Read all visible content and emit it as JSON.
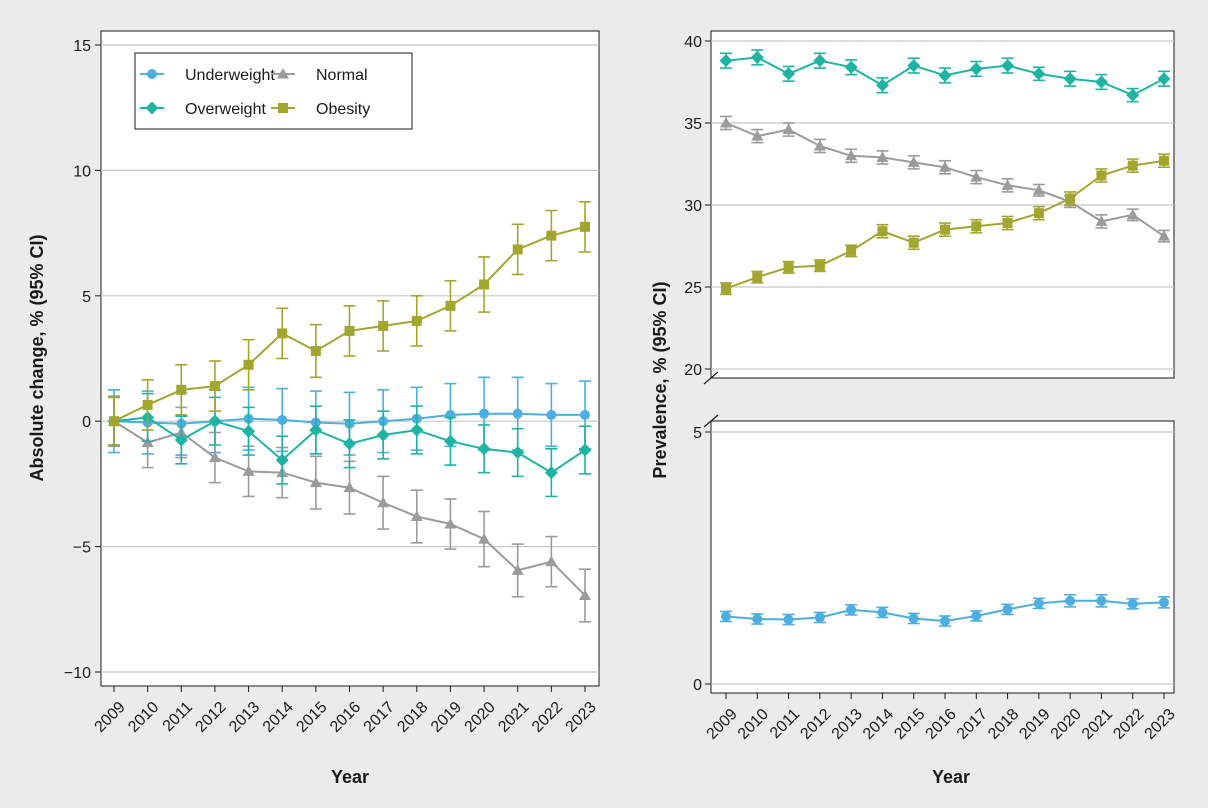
{
  "chart_data": [
    {
      "type": "line",
      "panel": "absolute-change",
      "xlabel": "Year",
      "ylabel": "Absolute change, % (95% CI)",
      "x": [
        "2009",
        "2010",
        "2011",
        "2012",
        "2013",
        "2014",
        "2015",
        "2016",
        "2017",
        "2018",
        "2019",
        "2020",
        "2021",
        "2022",
        "2023"
      ],
      "ylim": [
        -10.5,
        15.5
      ],
      "yticks": [
        15,
        10,
        5,
        0,
        -5,
        -10
      ],
      "ytick_labels": [
        "15",
        "10",
        "5",
        "0",
        "−5",
        "−10"
      ],
      "grid": "horizontal",
      "legend": {
        "placement": "top-left",
        "entries": [
          "Underweight",
          "Normal",
          "Overweight",
          "Obesity"
        ]
      },
      "series": [
        {
          "name": "Underweight",
          "color": "#4daee0",
          "marker": "circle",
          "values": [
            0.0,
            -0.05,
            -0.1,
            0.0,
            0.1,
            0.05,
            -0.05,
            -0.1,
            0.0,
            0.1,
            0.25,
            0.3,
            0.3,
            0.25,
            0.25
          ],
          "ci": [
            1.25,
            1.25,
            1.25,
            1.25,
            1.25,
            1.25,
            1.25,
            1.25,
            1.25,
            1.25,
            1.25,
            1.45,
            1.45,
            1.25,
            1.35
          ]
        },
        {
          "name": "Normal",
          "color": "#9b9b9b",
          "marker": "triangle",
          "values": [
            0.0,
            -0.85,
            -0.45,
            -1.45,
            -2.0,
            -2.05,
            -2.45,
            -2.65,
            -3.25,
            -3.8,
            -4.1,
            -4.7,
            -5.95,
            -5.6,
            -6.95
          ],
          "ci": [
            1.0,
            1.0,
            1.0,
            1.0,
            1.0,
            1.0,
            1.05,
            1.05,
            1.05,
            1.05,
            1.0,
            1.1,
            1.05,
            1.0,
            1.05
          ]
        },
        {
          "name": "Overweight",
          "color": "#1fb3a3",
          "marker": "diamond",
          "values": [
            0.0,
            0.15,
            -0.75,
            0.0,
            -0.4,
            -1.55,
            -0.35,
            -0.9,
            -0.55,
            -0.35,
            -0.8,
            -1.1,
            -1.25,
            -2.05,
            -1.15
          ],
          "ci": [
            0.95,
            0.95,
            0.95,
            0.95,
            0.95,
            0.95,
            0.95,
            0.95,
            0.95,
            0.95,
            0.95,
            0.95,
            0.95,
            0.95,
            0.95
          ]
        },
        {
          "name": "Obesity",
          "color": "#a2a62f",
          "marker": "square",
          "values": [
            0.0,
            0.65,
            1.25,
            1.4,
            2.25,
            3.5,
            2.8,
            3.6,
            3.8,
            4.0,
            4.6,
            5.45,
            6.85,
            7.4,
            7.75
          ],
          "ci": [
            0.95,
            1.0,
            1.0,
            1.0,
            1.0,
            1.0,
            1.05,
            1.0,
            1.0,
            1.0,
            1.0,
            1.1,
            1.0,
            1.0,
            1.0
          ]
        }
      ]
    },
    {
      "type": "line",
      "panel": "prevalence-upper",
      "xlabel": "",
      "ylabel": "Prevalence, % (95% CI)",
      "x": [
        "2009",
        "2010",
        "2011",
        "2012",
        "2013",
        "2014",
        "2015",
        "2016",
        "2017",
        "2018",
        "2019",
        "2020",
        "2021",
        "2022",
        "2023"
      ],
      "ylim": [
        19.5,
        40.5
      ],
      "yticks": [
        40,
        35,
        30,
        25,
        20
      ],
      "ytick_labels": [
        "40",
        "35",
        "30",
        "25",
        "20"
      ],
      "grid": "horizontal",
      "series": [
        {
          "name": "Overweight",
          "color": "#1fb3a3",
          "marker": "diamond",
          "values": [
            38.8,
            39.0,
            38.0,
            38.8,
            38.4,
            37.3,
            38.5,
            37.9,
            38.3,
            38.5,
            38.0,
            37.7,
            37.5,
            36.7,
            37.7
          ],
          "ci": [
            0.45,
            0.45,
            0.45,
            0.45,
            0.45,
            0.45,
            0.45,
            0.45,
            0.45,
            0.45,
            0.4,
            0.45,
            0.45,
            0.4,
            0.45
          ]
        },
        {
          "name": "Normal",
          "color": "#9b9b9b",
          "marker": "triangle",
          "values": [
            35.0,
            34.2,
            34.6,
            33.6,
            33.0,
            32.9,
            32.6,
            32.3,
            31.7,
            31.2,
            30.9,
            30.2,
            29.0,
            29.4,
            28.1
          ],
          "ci": [
            0.4,
            0.4,
            0.4,
            0.4,
            0.4,
            0.4,
            0.4,
            0.4,
            0.4,
            0.4,
            0.35,
            0.35,
            0.4,
            0.35,
            0.35
          ]
        },
        {
          "name": "Obesity",
          "color": "#a2a62f",
          "marker": "square",
          "values": [
            24.9,
            25.6,
            26.2,
            26.3,
            27.2,
            28.4,
            27.7,
            28.5,
            28.7,
            28.9,
            29.5,
            30.4,
            31.8,
            32.4,
            32.7
          ],
          "ci": [
            0.35,
            0.35,
            0.35,
            0.35,
            0.35,
            0.4,
            0.4,
            0.4,
            0.4,
            0.4,
            0.4,
            0.4,
            0.4,
            0.4,
            0.4
          ]
        }
      ]
    },
    {
      "type": "line",
      "panel": "prevalence-lower",
      "xlabel": "Year",
      "ylabel": "",
      "x": [
        "2009",
        "2010",
        "2011",
        "2012",
        "2013",
        "2014",
        "2015",
        "2016",
        "2017",
        "2018",
        "2019",
        "2020",
        "2021",
        "2022",
        "2023"
      ],
      "ylim": [
        0,
        5.05
      ],
      "yticks": [
        5,
        0
      ],
      "ytick_labels": [
        "5",
        "0"
      ],
      "grid": "horizontal",
      "series": [
        {
          "name": "Underweight",
          "color": "#4daee0",
          "marker": "circle",
          "values": [
            1.34,
            1.29,
            1.28,
            1.32,
            1.47,
            1.42,
            1.3,
            1.25,
            1.35,
            1.48,
            1.6,
            1.65,
            1.65,
            1.59,
            1.62
          ],
          "ci": [
            0.1,
            0.1,
            0.1,
            0.1,
            0.1,
            0.1,
            0.1,
            0.1,
            0.1,
            0.1,
            0.1,
            0.12,
            0.12,
            0.1,
            0.11
          ]
        }
      ]
    }
  ]
}
